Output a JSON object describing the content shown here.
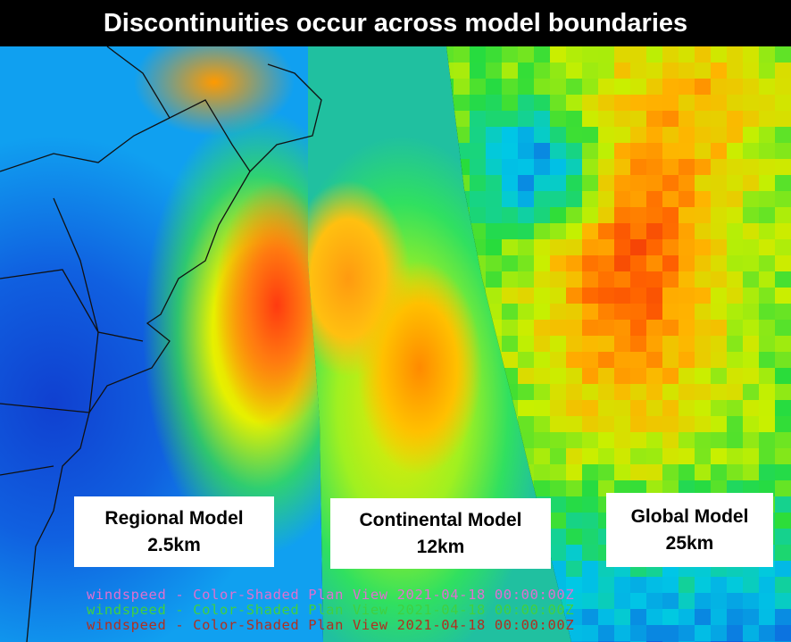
{
  "title": "Discontinuities occur across model boundaries",
  "labels": [
    {
      "name": "Regional Model",
      "resolution": "2.5km"
    },
    {
      "name": "Continental Model",
      "resolution": "12km"
    },
    {
      "name": "Global Model",
      "resolution": "25km"
    }
  ],
  "legend_lines": [
    {
      "text": "windspeed - Color-Shaded Plan View 2021-04-18 00:00:00Z",
      "color": "#e070d0"
    },
    {
      "text": "windspeed - Color-Shaded Plan View 2021-04-18 00:00:00Z",
      "color": "#40d040"
    },
    {
      "text": "windspeed - Color-Shaded Plan View 2021-04-18 00:00:00Z",
      "color": "#b03020"
    }
  ],
  "colors": {
    "low": "#1040d0",
    "mid": "#20e040",
    "high": "#ff3010"
  }
}
